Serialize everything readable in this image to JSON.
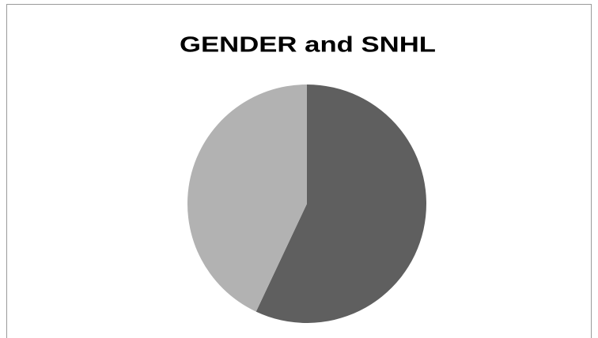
{
  "chart_data": {
    "type": "pie",
    "title": "GENDER and SNHL",
    "values": [
      57,
      43
    ],
    "colors": [
      "#5f5f5f",
      "#b2b2b2"
    ]
  }
}
